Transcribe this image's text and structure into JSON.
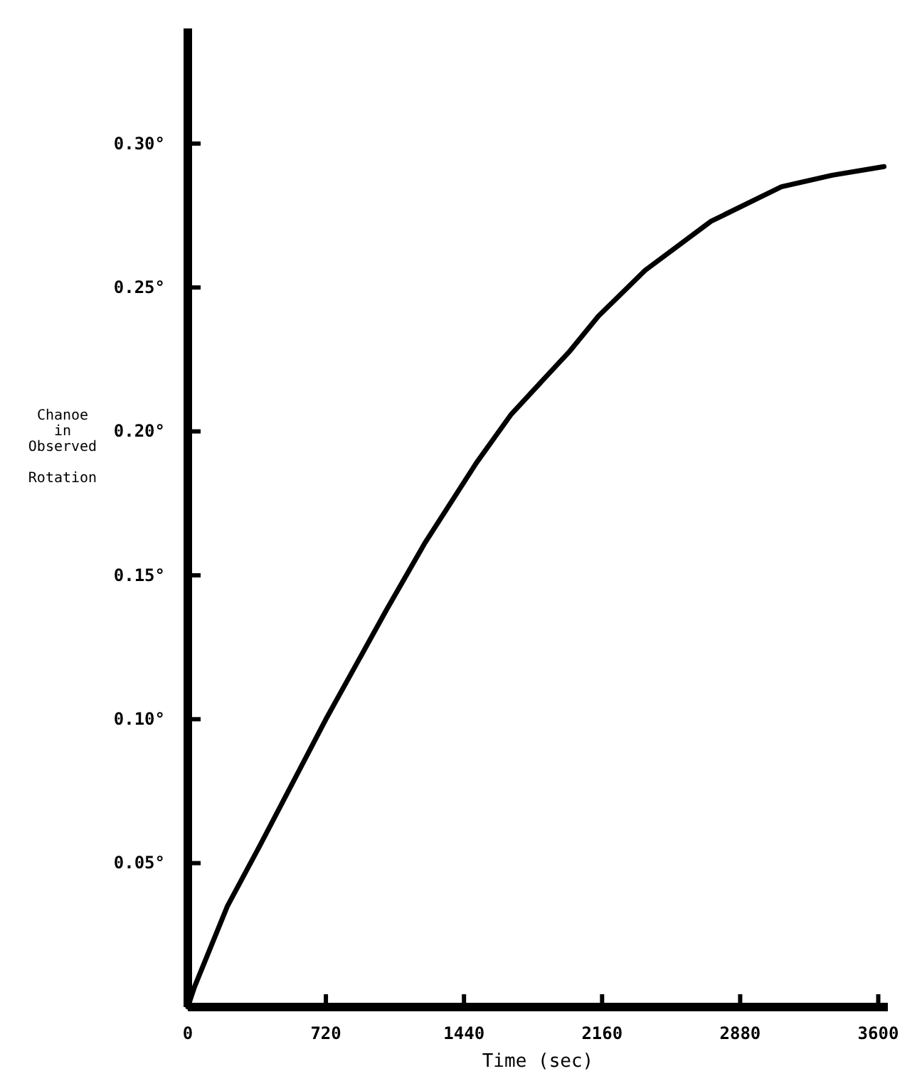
{
  "chart_data": {
    "type": "line",
    "xlabel": "Time (sec)",
    "ylabel": "Chanoe in Observed Rotation",
    "x": [
      0,
      35,
      206,
      375,
      720,
      1036,
      1234,
      1504,
      1687,
      1993,
      2140,
      2385,
      2728,
      3095,
      3360,
      3630
    ],
    "series": [
      {
        "color": "#000000",
        "values": [
          0,
          0.007,
          0.035,
          0.056,
          0.1,
          0.138,
          0.161,
          0.189,
          0.206,
          0.228,
          0.24,
          0.256,
          0.273,
          0.285,
          0.289,
          0.292
        ]
      }
    ],
    "xlim": [
      0,
      3650
    ],
    "xticks": [
      0,
      720,
      1440,
      2160,
      2880,
      3600
    ],
    "ylim": [
      0,
      0.34
    ],
    "yticks": [
      {
        "value": 0.05,
        "label": "0.05°"
      },
      {
        "value": 0.1,
        "label": "0.10°"
      },
      {
        "value": 0.15,
        "label": "0.15°"
      },
      {
        "value": 0.2,
        "label": "0.20°"
      },
      {
        "value": 0.25,
        "label": "0.25°"
      },
      {
        "value": 0.3,
        "label": "0.30°"
      }
    ],
    "marker": "none",
    "line_style": "solid"
  }
}
